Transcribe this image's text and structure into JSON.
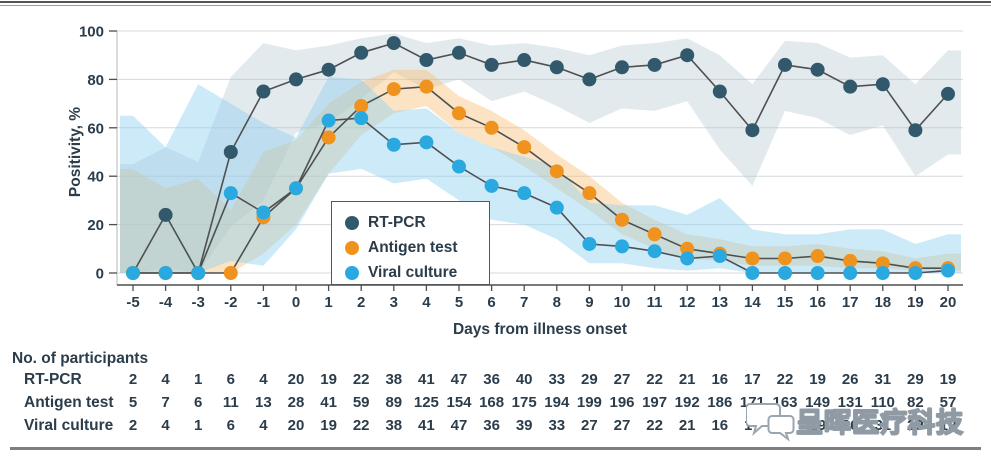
{
  "chart_data": {
    "type": "line",
    "title": "",
    "xlabel": "Days from illness onset",
    "ylabel": "Positivity, %",
    "ylim": [
      0,
      100
    ],
    "grid": "horizontal",
    "grid_color": "#d6d9db",
    "line_color": "#4e5052",
    "axis_color": "#4d4e50",
    "text_color": "#2b3c4a",
    "legend_position": "inside lower-left of plot",
    "x": [
      -5,
      -4,
      -3,
      -2,
      -1,
      0,
      1,
      2,
      3,
      4,
      5,
      6,
      7,
      8,
      9,
      10,
      11,
      12,
      13,
      14,
      15,
      16,
      17,
      18,
      19,
      20
    ],
    "x_tick_labels": [
      "-5",
      "-4",
      "-3",
      "-2",
      "-1",
      "0",
      "1",
      "2",
      "3",
      "4",
      "5",
      "6",
      "7",
      "8",
      "9",
      "10",
      "11",
      "12",
      "13",
      "14",
      "15",
      "16",
      "17",
      "18",
      "19",
      "20"
    ],
    "y_ticks": [
      0,
      20,
      40,
      60,
      80,
      100
    ],
    "series": [
      {
        "id": "rtpcr",
        "name": "RT-PCR",
        "color": "#31586b",
        "band_color": "#aabfca",
        "band_opacity": 0.33,
        "values": [
          0,
          24,
          0,
          50,
          75,
          80,
          84,
          91,
          95,
          88,
          91,
          86,
          88,
          85,
          80,
          85,
          86,
          90,
          75,
          59,
          86,
          84,
          77,
          78,
          59,
          74
        ],
        "ci_low": [
          0,
          2,
          0,
          19,
          30,
          58,
          62,
          72,
          83,
          76,
          80,
          71,
          75,
          69,
          62,
          68,
          67,
          71,
          51,
          36,
          67,
          64,
          57,
          61,
          40,
          49
        ],
        "ci_high": [
          45,
          52,
          46,
          81,
          95,
          92,
          94,
          97,
          99,
          95,
          97,
          94,
          95,
          93,
          90,
          94,
          95,
          97,
          90,
          78,
          96,
          95,
          89,
          90,
          78,
          92
        ]
      },
      {
        "id": "antigen",
        "name": "Antigen test",
        "color": "#f0921e",
        "band_color": "#f7bd70",
        "band_opacity": 0.42,
        "values": [
          0,
          0,
          0,
          0,
          23,
          35,
          56,
          69,
          76,
          77,
          66,
          60,
          52,
          42,
          33,
          22,
          16,
          10,
          8,
          6,
          6,
          7,
          5,
          4,
          2,
          2
        ],
        "ci_low": [
          0,
          0,
          0,
          0,
          8,
          20,
          41,
          57,
          66,
          69,
          58,
          52,
          44,
          35,
          26,
          16,
          10,
          6,
          5,
          3,
          3,
          3,
          2,
          2,
          1,
          1
        ],
        "ci_high": [
          43,
          35,
          39,
          26,
          50,
          55,
          70,
          79,
          84,
          84,
          73,
          67,
          59,
          49,
          40,
          29,
          22,
          16,
          14,
          11,
          11,
          12,
          10,
          9,
          6,
          8
        ]
      },
      {
        "id": "viral",
        "name": "Viral culture",
        "color": "#2aa9e0",
        "band_color": "#90d1f2",
        "band_opacity": 0.45,
        "values": [
          0,
          0,
          0,
          33,
          25,
          35,
          63,
          64,
          53,
          54,
          44,
          36,
          33,
          27,
          12,
          11,
          9,
          6,
          7,
          0,
          0,
          0,
          0,
          0,
          0,
          1
        ],
        "ci_low": [
          0,
          0,
          0,
          5,
          3,
          18,
          41,
          43,
          37,
          39,
          30,
          22,
          20,
          14,
          4,
          4,
          2,
          1,
          2,
          0,
          0,
          0,
          0,
          0,
          0,
          0
        ],
        "ci_high": [
          65,
          52,
          78,
          70,
          62,
          56,
          81,
          80,
          67,
          68,
          58,
          52,
          48,
          44,
          29,
          28,
          28,
          24,
          31,
          18,
          16,
          16,
          18,
          18,
          12,
          16
        ]
      }
    ]
  },
  "table": {
    "title": "No. of participants",
    "rows": [
      {
        "label": "RT-PCR",
        "values": [
          2,
          4,
          1,
          6,
          4,
          20,
          19,
          22,
          38,
          41,
          47,
          36,
          40,
          33,
          29,
          27,
          22,
          21,
          16,
          17,
          22,
          19,
          26,
          31,
          29,
          19
        ]
      },
      {
        "label": "Antigen test",
        "values": [
          5,
          7,
          6,
          11,
          13,
          28,
          41,
          59,
          89,
          125,
          154,
          168,
          175,
          194,
          199,
          196,
          197,
          192,
          186,
          171,
          163,
          149,
          131,
          110,
          82,
          57
        ]
      },
      {
        "label": "Viral culture",
        "values": [
          2,
          4,
          1,
          6,
          4,
          20,
          19,
          22,
          38,
          41,
          47,
          36,
          39,
          33,
          27,
          27,
          22,
          21,
          16,
          17,
          21,
          19,
          26,
          31,
          29,
          19
        ]
      }
    ]
  },
  "watermark": {
    "text": "呈晖医疗科技"
  }
}
